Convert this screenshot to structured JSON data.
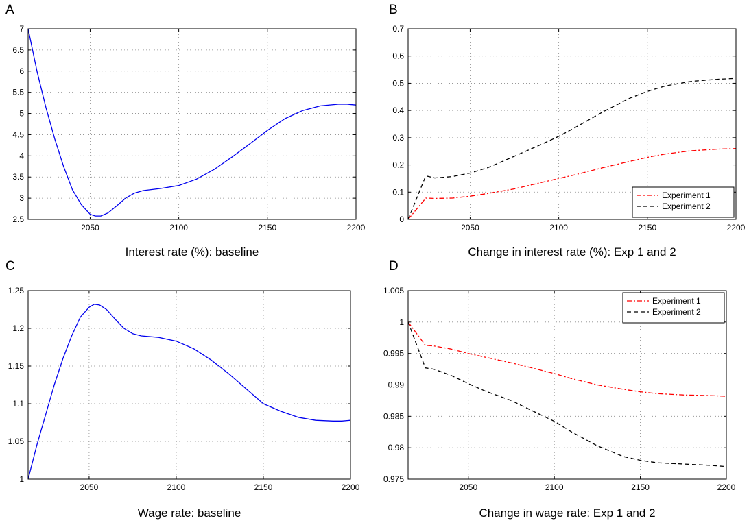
{
  "chart_data": [
    {
      "panel": "A",
      "type": "line",
      "caption": "Interest rate (%): baseline",
      "xlim": [
        2015,
        2200
      ],
      "ylim": [
        2.5,
        7
      ],
      "xticks": [
        "2050",
        "2100",
        "2150",
        "2200"
      ],
      "yticks": [
        "2.5",
        "3",
        "3.5",
        "4",
        "4.5",
        "5",
        "5.5",
        "6",
        "6.5",
        "7"
      ],
      "grid": true,
      "legend": null,
      "series": [
        {
          "color": "#0000ee",
          "dash": "solid",
          "x": [
            2015,
            2020,
            2025,
            2030,
            2035,
            2040,
            2045,
            2050,
            2053,
            2056,
            2060,
            2065,
            2070,
            2075,
            2080,
            2090,
            2100,
            2110,
            2120,
            2130,
            2140,
            2150,
            2160,
            2170,
            2180,
            2190,
            2195,
            2200
          ],
          "y": [
            7.0,
            6.0,
            5.15,
            4.4,
            3.75,
            3.2,
            2.85,
            2.62,
            2.58,
            2.58,
            2.65,
            2.82,
            3.0,
            3.12,
            3.18,
            3.23,
            3.3,
            3.45,
            3.68,
            3.97,
            4.28,
            4.6,
            4.88,
            5.07,
            5.18,
            5.22,
            5.22,
            5.2
          ]
        }
      ]
    },
    {
      "panel": "B",
      "type": "line",
      "caption": "Change in interest rate (%): Exp 1 and 2",
      "xlim": [
        2015,
        2200
      ],
      "ylim": [
        0,
        0.7
      ],
      "xticks": [
        "2050",
        "2100",
        "2150",
        "2200"
      ],
      "yticks": [
        "0",
        "0.1",
        "0.2",
        "0.3",
        "0.4",
        "0.5",
        "0.6",
        "0.7"
      ],
      "grid": true,
      "legend": "bottom-right",
      "series": [
        {
          "name": "Experiment 1",
          "color": "#ff0000",
          "dash": "dashdot",
          "x": [
            2015,
            2025,
            2030,
            2040,
            2050,
            2060,
            2075,
            2090,
            2100,
            2110,
            2125,
            2140,
            2150,
            2160,
            2175,
            2190,
            2200
          ],
          "y": [
            0.0,
            0.078,
            0.077,
            0.078,
            0.085,
            0.095,
            0.112,
            0.135,
            0.15,
            0.165,
            0.19,
            0.213,
            0.228,
            0.24,
            0.252,
            0.258,
            0.26
          ]
        },
        {
          "name": "Experiment 2",
          "color": "#000000",
          "dash": "dashed",
          "x": [
            2015,
            2025,
            2030,
            2040,
            2050,
            2060,
            2075,
            2090,
            2100,
            2110,
            2125,
            2140,
            2150,
            2160,
            2175,
            2190,
            2200
          ],
          "y": [
            0.0,
            0.16,
            0.152,
            0.157,
            0.17,
            0.19,
            0.232,
            0.275,
            0.305,
            0.34,
            0.395,
            0.445,
            0.47,
            0.49,
            0.507,
            0.515,
            0.518
          ]
        }
      ]
    },
    {
      "panel": "C",
      "type": "line",
      "caption": "Wage rate: baseline",
      "xlim": [
        2015,
        2200
      ],
      "ylim": [
        1,
        1.25
      ],
      "xticks": [
        "2050",
        "2100",
        "2150",
        "2200"
      ],
      "yticks": [
        "1",
        "1.05",
        "1.1",
        "1.15",
        "1.2",
        "1.25"
      ],
      "grid": true,
      "legend": null,
      "series": [
        {
          "color": "#0000ee",
          "dash": "solid",
          "x": [
            2015,
            2020,
            2025,
            2030,
            2035,
            2040,
            2045,
            2050,
            2053,
            2056,
            2060,
            2065,
            2070,
            2075,
            2080,
            2090,
            2100,
            2110,
            2120,
            2130,
            2140,
            2150,
            2160,
            2170,
            2180,
            2190,
            2195,
            2200
          ],
          "y": [
            1.0,
            1.045,
            1.085,
            1.125,
            1.16,
            1.19,
            1.215,
            1.228,
            1.232,
            1.231,
            1.225,
            1.212,
            1.2,
            1.193,
            1.19,
            1.188,
            1.183,
            1.173,
            1.158,
            1.14,
            1.12,
            1.1,
            1.09,
            1.082,
            1.078,
            1.077,
            1.077,
            1.078
          ]
        }
      ]
    },
    {
      "panel": "D",
      "type": "line",
      "caption": "Change in wage rate: Exp 1 and 2",
      "xlim": [
        2015,
        2200
      ],
      "ylim": [
        0.975,
        1.005
      ],
      "xticks": [
        "2050",
        "2100",
        "2150",
        "2200"
      ],
      "yticks": [
        "0.975",
        "0.98",
        "0.985",
        "0.99",
        "0.995",
        "1",
        "1.005"
      ],
      "grid": true,
      "legend": "top-right",
      "series": [
        {
          "name": "Experiment 1",
          "color": "#ff0000",
          "dash": "dashdot",
          "x": [
            2015,
            2025,
            2030,
            2040,
            2050,
            2060,
            2075,
            2090,
            2100,
            2110,
            2125,
            2140,
            2150,
            2160,
            2175,
            2190,
            2200
          ],
          "y": [
            1.0,
            0.9963,
            0.9962,
            0.9957,
            0.995,
            0.9944,
            0.9935,
            0.9925,
            0.9918,
            0.991,
            0.99,
            0.9893,
            0.9889,
            0.9886,
            0.9884,
            0.9883,
            0.9882
          ]
        },
        {
          "name": "Experiment 2",
          "color": "#000000",
          "dash": "dashed",
          "x": [
            2015,
            2025,
            2030,
            2040,
            2050,
            2060,
            2075,
            2090,
            2100,
            2110,
            2125,
            2140,
            2150,
            2160,
            2175,
            2190,
            2200
          ],
          "y": [
            1.0,
            0.9927,
            0.9925,
            0.9915,
            0.9902,
            0.989,
            0.9875,
            0.9855,
            0.9842,
            0.9825,
            0.9803,
            0.9786,
            0.978,
            0.9776,
            0.9774,
            0.9772,
            0.977
          ]
        }
      ]
    }
  ]
}
